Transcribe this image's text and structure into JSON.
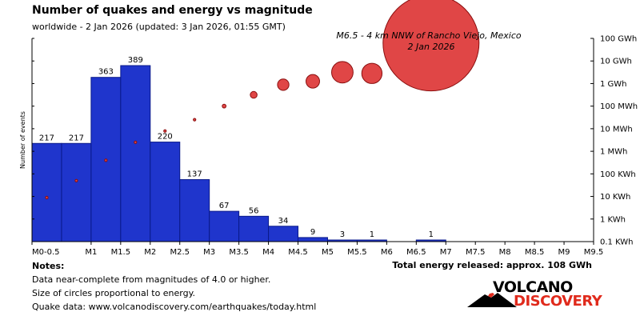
{
  "title": "Number of quakes and energy vs magnitude",
  "subtitle": "worldwide -  2 Jan 2026 (updated: 3 Jan 2026, 01:55 GMT)",
  "colors": {
    "bar_fill": "#1f35cc",
    "bar_stroke": "#0a1a8a",
    "bubble_fill": "#e04646",
    "bubble_stroke": "#8a0f0f",
    "axis": "#000000",
    "logo_red": "#e02a1c"
  },
  "chart_data": {
    "type": "bar",
    "title": "Number of quakes and energy vs magnitude",
    "ylabel": "Number of events",
    "categories": [
      "M0-0.5",
      "M0.5-1",
      "M1-1.5",
      "M1.5-2",
      "M2-2.5",
      "M2.5-3",
      "M3-3.5",
      "M3.5-4",
      "M4-4.5",
      "M4.5-5",
      "M5-5.5",
      "M5.5-6",
      "M6-6.5",
      "M6.5-7",
      "M7-7.5",
      "M7.5-8",
      "M8-8.5",
      "M8.5-9",
      "M9-9.5"
    ],
    "values": [
      217,
      217,
      363,
      389,
      220,
      137,
      67,
      56,
      34,
      9,
      3,
      1,
      0,
      1,
      0,
      0,
      0,
      0,
      0
    ],
    "xlim": [
      0,
      9.5
    ],
    "ylim": [
      0,
      389
    ],
    "x_ticks": [
      {
        "value": 0,
        "label": "M0-0.5"
      },
      {
        "value": 1,
        "label": "M1"
      },
      {
        "value": 1.5,
        "label": "M1.5"
      },
      {
        "value": 2,
        "label": "M2"
      },
      {
        "value": 2.5,
        "label": "M2.5"
      },
      {
        "value": 3,
        "label": "M3"
      },
      {
        "value": 3.5,
        "label": "M3.5"
      },
      {
        "value": 4,
        "label": "M4"
      },
      {
        "value": 4.5,
        "label": "M4.5"
      },
      {
        "value": 5,
        "label": "M5"
      },
      {
        "value": 5.5,
        "label": "M5.5"
      },
      {
        "value": 6,
        "label": "M6"
      },
      {
        "value": 6.5,
        "label": "M6.5"
      },
      {
        "value": 7,
        "label": "M7"
      },
      {
        "value": 7.5,
        "label": "M7.5"
      },
      {
        "value": 8,
        "label": "M8"
      },
      {
        "value": 8.5,
        "label": "M8.5"
      },
      {
        "value": 9,
        "label": "M9"
      },
      {
        "value": 9.5,
        "label": "M9.5"
      }
    ],
    "energy_axis": {
      "label_position": "right",
      "log10_min_wh": 2,
      "log10_max_wh": 11,
      "ticks": [
        {
          "log10_wh": 2,
          "label": "0.1 KWh"
        },
        {
          "log10_wh": 3,
          "label": "1 KWh"
        },
        {
          "log10_wh": 4,
          "label": "10 KWh"
        },
        {
          "log10_wh": 5,
          "label": "100 KWh"
        },
        {
          "log10_wh": 6,
          "label": "1 MWh"
        },
        {
          "log10_wh": 7,
          "label": "10 MWh"
        },
        {
          "log10_wh": 8,
          "label": "100 MWh"
        },
        {
          "log10_wh": 9,
          "label": "1 GWh"
        },
        {
          "log10_wh": 10,
          "label": "10 GWh"
        },
        {
          "log10_wh": 11,
          "label": "100 GWh"
        }
      ]
    },
    "energy_series": [
      {
        "magnitude_bin": 0.25,
        "log10_wh": 3.95
      },
      {
        "magnitude_bin": 0.75,
        "log10_wh": 4.7
      },
      {
        "magnitude_bin": 1.25,
        "log10_wh": 5.6
      },
      {
        "magnitude_bin": 1.75,
        "log10_wh": 6.4
      },
      {
        "magnitude_bin": 2.25,
        "log10_wh": 6.9
      },
      {
        "magnitude_bin": 2.75,
        "log10_wh": 7.4
      },
      {
        "magnitude_bin": 3.25,
        "log10_wh": 8.0
      },
      {
        "magnitude_bin": 3.75,
        "log10_wh": 8.5
      },
      {
        "magnitude_bin": 4.25,
        "log10_wh": 8.95
      },
      {
        "magnitude_bin": 4.75,
        "log10_wh": 9.1
      },
      {
        "magnitude_bin": 5.25,
        "log10_wh": 9.5
      },
      {
        "magnitude_bin": 5.75,
        "log10_wh": 9.45
      },
      {
        "magnitude_bin": 6.75,
        "log10_wh": 10.8
      }
    ],
    "annotation": {
      "line1": "M6.5 - 4 km NNW of Rancho Viejo, Mexico",
      "line2": "2 Jan 2026"
    },
    "total_energy": "Total energy released: approx. 108 GWh"
  },
  "notes": {
    "title": "Notes:",
    "lines": [
      "Data near-complete from magnitudes of 4.0 or higher.",
      "Size of circles proportional to energy.",
      "Quake data: www.volcanodiscovery.com/earthquakes/today.html"
    ]
  },
  "logo": {
    "word1": "VOLCANO",
    "word2": "DISCOVERY"
  }
}
